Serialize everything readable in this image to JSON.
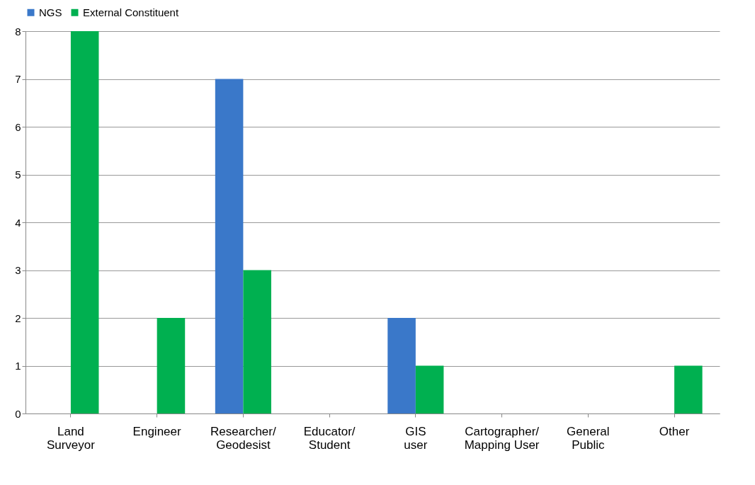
{
  "chart_data": {
    "type": "bar",
    "categories": [
      "Land Surveyor",
      "Engineer",
      "Researcher/Geodesist",
      "Educator/Student",
      "GIS user",
      "Cartographer/Mapping User",
      "General Public",
      "Other"
    ],
    "series": [
      {
        "name": "NGS",
        "color": "#3a78c9",
        "values": [
          0,
          0,
          7,
          0,
          2,
          0,
          0,
          0
        ]
      },
      {
        "name": "External Constituent",
        "color": "#00b050",
        "values": [
          8,
          2,
          3,
          0,
          1,
          0,
          0,
          1
        ]
      }
    ],
    "ylim": [
      0,
      8
    ],
    "yticks": [
      0,
      1,
      2,
      3,
      4,
      5,
      6,
      7,
      8
    ],
    "grid": "y",
    "legend": "top"
  }
}
